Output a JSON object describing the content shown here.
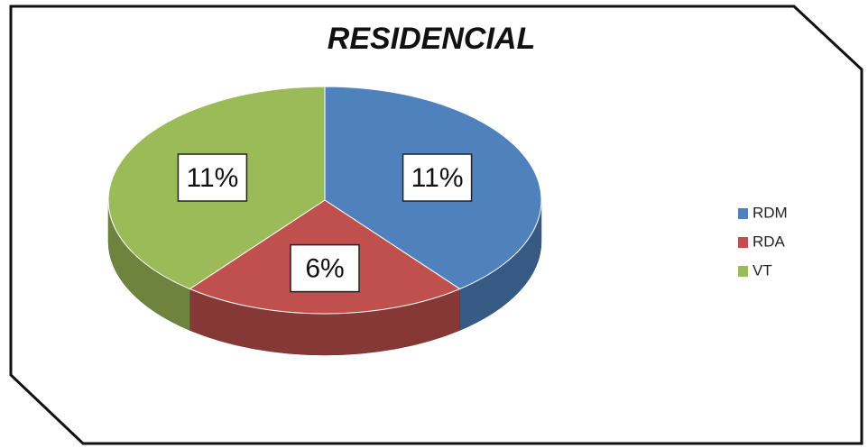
{
  "chart_data": {
    "type": "pie",
    "title": "RESIDENCIAL",
    "categories": [
      "RDM",
      "RDA",
      "VT"
    ],
    "values": [
      11,
      6,
      11
    ],
    "value_labels": [
      "11%",
      "6%",
      "11%"
    ],
    "colors": [
      "#4f81bd",
      "#c0504d",
      "#9bbb59"
    ],
    "legend": "right"
  }
}
